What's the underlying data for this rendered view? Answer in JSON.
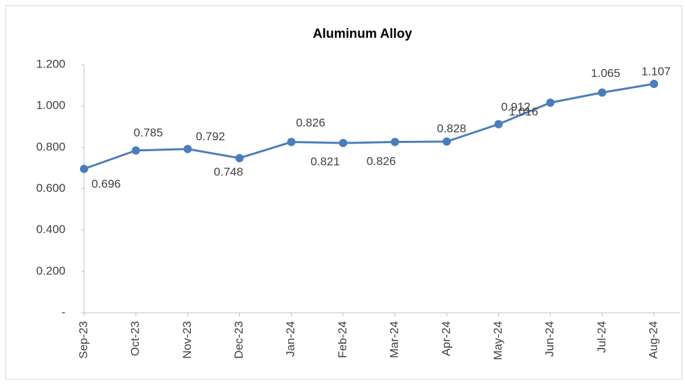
{
  "chart_data": {
    "type": "line",
    "title": "Aluminum Alloy",
    "categories": [
      "Sep-23",
      "Oct-23",
      "Nov-23",
      "Dec-23",
      "Jan-24",
      "Feb-24",
      "Mar-24",
      "Apr-24",
      "May-24",
      "Jun-24",
      "Jul-24",
      "Aug-24"
    ],
    "series": [
      {
        "name": "Aluminum Alloy",
        "color": "#4a7ebb",
        "values": [
          0.696,
          0.785,
          0.792,
          0.748,
          0.826,
          0.821,
          0.826,
          0.828,
          0.912,
          1.016,
          1.065,
          1.107
        ]
      }
    ],
    "ylim": [
      0,
      1.2
    ],
    "yticks": [
      {
        "value": 0,
        "label": "-"
      },
      {
        "value": 0.2,
        "label": "0.200"
      },
      {
        "value": 0.4,
        "label": "0.400"
      },
      {
        "value": 0.6,
        "label": "0.600"
      },
      {
        "value": 0.8,
        "label": "0.800"
      },
      {
        "value": 1.0,
        "label": "1.000"
      },
      {
        "value": 1.2,
        "label": "1.200"
      }
    ],
    "grid": false
  }
}
